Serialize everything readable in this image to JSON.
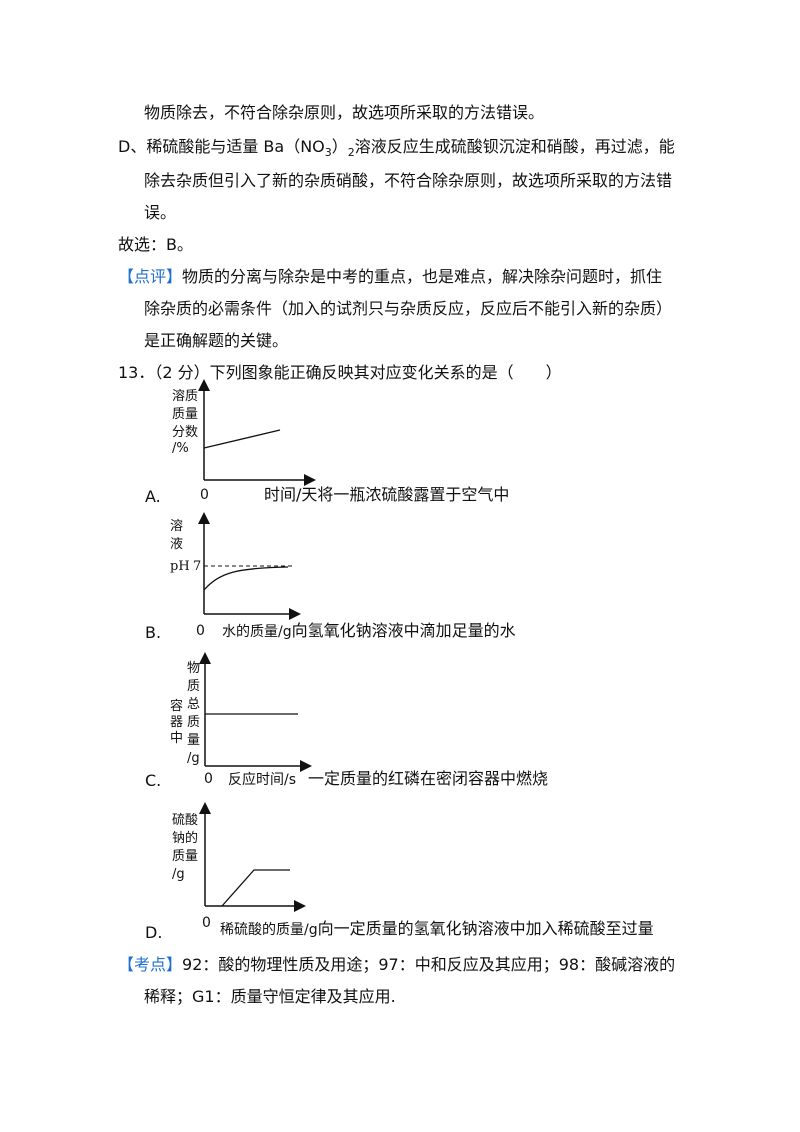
{
  "lines": {
    "l1": "物质除去，不符合除杂原则，故选项所采取的方法错误。",
    "l2": "D、稀硫酸能与适量 Ba（NO",
    "l2_sub": "3",
    "l2_mid": "）",
    "l2_sub2": "2",
    "l2_end": "溶液反应生成硫酸钡沉淀和硝酸，再过滤，能",
    "l3": "除去杂质但引入了新的杂质硝酸，不符合除杂原则，故选项所采取的方法错",
    "l4": "误。",
    "l5": "故选：B。",
    "l6_tag": "【点评】",
    "l6": "物质的分离与除杂是中考的重点，也是难点，解决除杂问题时，抓住",
    "l7": "除杂质的必需条件（加入的试剂只与杂质反应，反应后不能引入新的杂质）",
    "l8": "是正确解题的关键。",
    "q13": "13．（2 分）下列图象能正确反映其对应变化关系的是（　　）"
  },
  "options": {
    "A": {
      "letter": "A.",
      "text": "将一瓶浓硫酸露置于空气中",
      "ylabel": [
        "溶质",
        "质量",
        "分数",
        "/%"
      ],
      "origin": "0",
      "xlabel": "时间/天"
    },
    "B": {
      "letter": "B.",
      "text": "向氢氧化钠溶液中滴加足量的水",
      "ylabel": [
        "溶",
        "液",
        "pH"
      ],
      "ph": "7",
      "origin": "0",
      "xlabel": "水的质量/g"
    },
    "C": {
      "letter": "C.",
      "text": "一定质量的红磷在密闭容器中燃烧",
      "ylabel_left": [
        "容",
        "器",
        "中"
      ],
      "ylabel": [
        "物",
        "质",
        "总",
        "质",
        "量",
        "/g"
      ],
      "origin": "0",
      "xlabel": "反应时间/s"
    },
    "D": {
      "letter": "D.",
      "text": "向一定质量的氢氧化钠溶液中加入稀硫酸至过量",
      "ylabel": [
        "硫酸",
        "钠的",
        "质量",
        "/g"
      ],
      "origin": "0",
      "xlabel": "稀硫酸的质量/g"
    }
  },
  "kaodian": {
    "tag": "【考点】",
    "text1": "92：酸的物理性质及用途；97：中和反应及其应用；98：酸碱溶液的",
    "text2": "稀释；G1：质量守恒定律及其应用."
  },
  "colors": {
    "accent": "#1f6fd1"
  }
}
